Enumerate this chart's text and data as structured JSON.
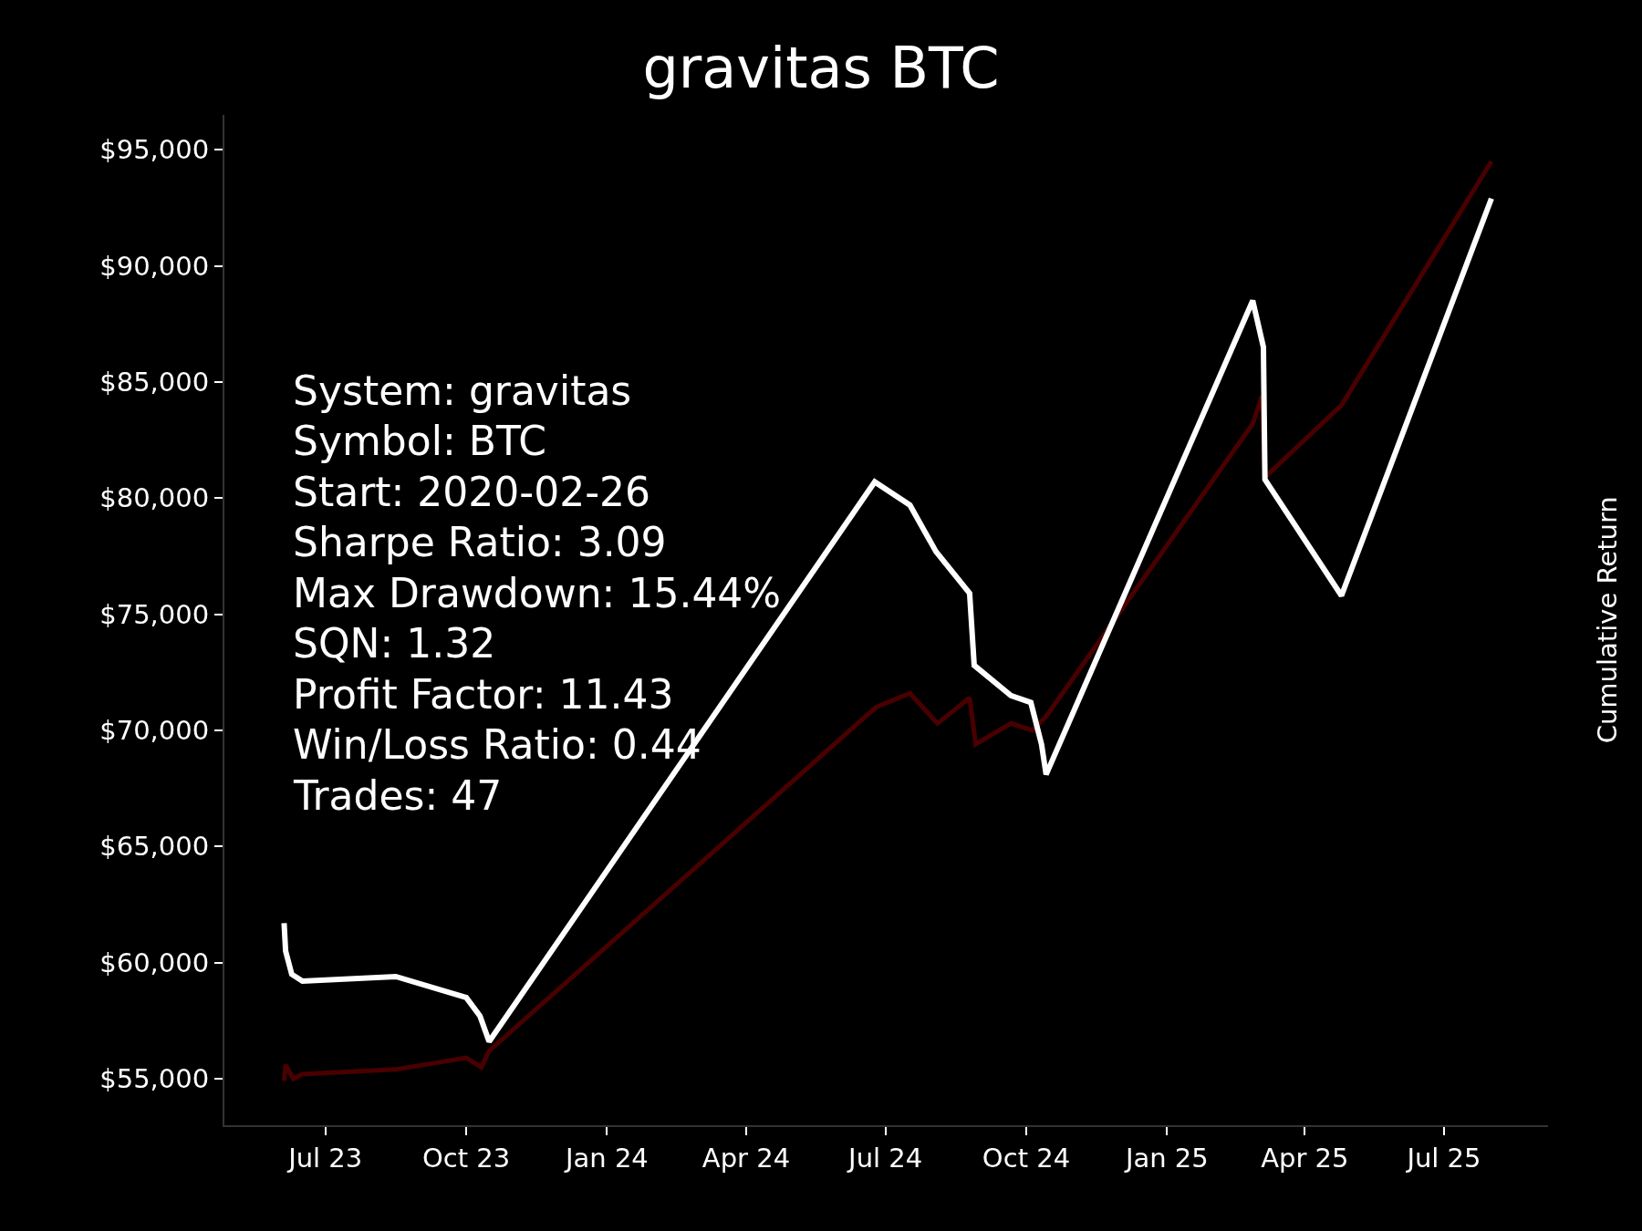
{
  "chart_data": {
    "type": "line",
    "title": "gravitas BTC",
    "y2label": "Cumulative Return",
    "annotations": [
      "System: gravitas",
      "Symbol: BTC",
      "Start: 2020-02-26",
      "Sharpe Ratio: 3.09",
      "Max Drawdown: 15.44%",
      "SQN: 1.32",
      "Profit Factor: 11.43",
      "Win/Loss Ratio: 0.44",
      "Trades: 47"
    ],
    "series": [
      {
        "color": "#4a0000",
        "x": [
          "2023-06-04",
          "2023-06-05",
          "2023-06-10",
          "2023-06-16",
          "2023-08-16",
          "2023-10-01",
          "2023-10-11",
          "2023-10-16",
          "2024-06-18",
          "2024-06-25",
          "2024-07-17",
          "2024-08-04",
          "2024-08-25",
          "2024-08-29",
          "2024-09-21",
          "2024-10-05",
          "2024-10-14",
          "2025-02-26",
          "2025-03-04",
          "2025-03-06",
          "2025-04-25",
          "2025-08-01"
        ],
        "values": [
          54900,
          55600,
          55000,
          55200,
          55400,
          55900,
          55500,
          56200,
          70600,
          71000,
          71600,
          70300,
          71400,
          69400,
          70300,
          70000,
          70600,
          83200,
          84400,
          80900,
          84000,
          94500
        ]
      },
      {
        "color": "#ffffff",
        "x": [
          "2023-06-04",
          "2023-06-05",
          "2023-06-09",
          "2023-06-16",
          "2023-08-16",
          "2023-10-01",
          "2023-10-10",
          "2023-10-16",
          "2024-06-24",
          "2024-07-17",
          "2024-08-03",
          "2024-08-25",
          "2024-08-28",
          "2024-09-21",
          "2024-10-04",
          "2024-10-11",
          "2024-10-14",
          "2025-02-26",
          "2025-03-05",
          "2025-03-06",
          "2025-04-25",
          "2025-08-01"
        ],
        "values": [
          61700,
          60500,
          59500,
          59200,
          59400,
          58500,
          57700,
          56600,
          80700,
          79700,
          77700,
          75900,
          72800,
          71500,
          71200,
          69400,
          68100,
          88500,
          86500,
          80800,
          75800,
          92900
        ]
      }
    ],
    "xlim": [
      "2023-04-26",
      "2025-09-07"
    ],
    "xticks": [
      {
        "value": "2023-07-01",
        "label": "Jul 23"
      },
      {
        "value": "2023-10-01",
        "label": "Oct 23"
      },
      {
        "value": "2024-01-01",
        "label": "Jan 24"
      },
      {
        "value": "2024-04-01",
        "label": "Apr 24"
      },
      {
        "value": "2024-07-01",
        "label": "Jul 24"
      },
      {
        "value": "2024-10-01",
        "label": "Oct 24"
      },
      {
        "value": "2025-01-01",
        "label": "Jan 25"
      },
      {
        "value": "2025-04-01",
        "label": "Apr 25"
      },
      {
        "value": "2025-07-01",
        "label": "Jul 25"
      }
    ],
    "ylim": [
      53000,
      96500
    ],
    "yticks": [
      {
        "value": 55000,
        "label": "$55,000"
      },
      {
        "value": 60000,
        "label": "$60,000"
      },
      {
        "value": 65000,
        "label": "$65,000"
      },
      {
        "value": 70000,
        "label": "$70,000"
      },
      {
        "value": 75000,
        "label": "$75,000"
      },
      {
        "value": 80000,
        "label": "$80,000"
      },
      {
        "value": 85000,
        "label": "$85,000"
      },
      {
        "value": 90000,
        "label": "$90,000"
      },
      {
        "value": 95000,
        "label": "$95,000"
      }
    ],
    "grid": false
  }
}
